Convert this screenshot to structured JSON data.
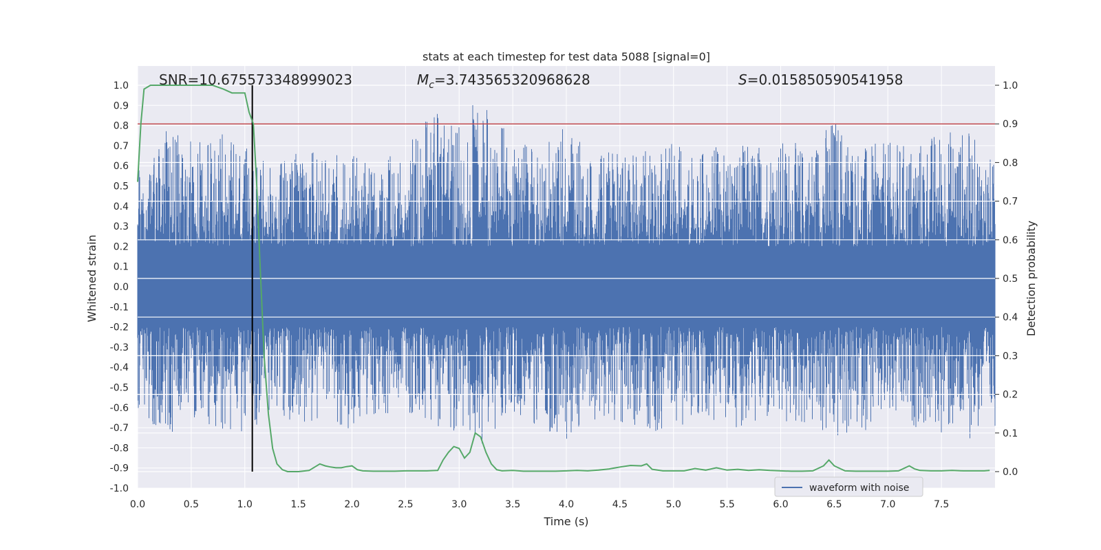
{
  "chart_data": {
    "type": "line",
    "title": "stats at each timestep for test data 5088 [signal=0]",
    "xlabel": "Time (s)",
    "ylabel_left": "Whitened strain",
    "ylabel_right": "Detection probability",
    "xlim": [
      0.0,
      8.0
    ],
    "ylim_left": [
      -1.0,
      1.0
    ],
    "ylim_right": [
      0.0,
      1.0
    ],
    "x_ticks": [
      "0.0",
      "0.5",
      "1.0",
      "1.5",
      "2.0",
      "2.5",
      "3.0",
      "3.5",
      "4.0",
      "4.5",
      "5.0",
      "5.5",
      "6.0",
      "6.5",
      "7.0",
      "7.5"
    ],
    "x_tick_values": [
      0.0,
      0.5,
      1.0,
      1.5,
      2.0,
      2.5,
      3.0,
      3.5,
      4.0,
      4.5,
      5.0,
      5.5,
      6.0,
      6.5,
      7.0,
      7.5
    ],
    "y_ticks_left": [
      "1.0",
      "0.9",
      "0.8",
      "0.7",
      "0.6",
      "0.5",
      "0.4",
      "0.3",
      "0.2",
      "0.1",
      "0.0",
      "-0.1",
      "-0.2",
      "-0.3",
      "-0.4",
      "-0.5",
      "-0.6",
      "-0.7",
      "-0.8",
      "-0.9",
      "-1.0"
    ],
    "y_tick_values_left": [
      1.0,
      0.9,
      0.8,
      0.7,
      0.6,
      0.5,
      0.4,
      0.3,
      0.2,
      0.1,
      0.0,
      -0.1,
      -0.2,
      -0.3,
      -0.4,
      -0.5,
      -0.6,
      -0.7,
      -0.8,
      -0.9,
      -1.0
    ],
    "y_ticks_right": [
      "1.0",
      "0.9",
      "0.8",
      "0.7",
      "0.6",
      "0.5",
      "0.4",
      "0.3",
      "0.2",
      "0.1",
      "0.0"
    ],
    "y_tick_values_right": [
      1.0,
      0.9,
      0.8,
      0.7,
      0.6,
      0.5,
      0.4,
      0.3,
      0.2,
      0.1,
      0.0
    ],
    "annotations": {
      "snr": "SNR=10.675573348999023",
      "mc_symbol": "M",
      "mc_sub": "c",
      "mc_value": "=3.743565320968628",
      "s_symbol": "S",
      "s_value": "=0.015850590541958"
    },
    "legend": [
      "waveform with noise"
    ],
    "threshold": 0.9,
    "marker_time": 1.07,
    "colors": {
      "waveform": "#4c72b0",
      "probability": "#55a868",
      "threshold": "#c44e52",
      "marker": "#000000",
      "axes_bg": "#eaeaf2",
      "grid": "#ffffff"
    },
    "series": [
      {
        "name": "waveform with noise",
        "axis": "left",
        "note": "dense noise; representative envelope",
        "envelope_t": [
          0.0,
          0.25,
          0.5,
          0.75,
          1.0,
          1.25,
          1.5,
          1.75,
          2.0,
          2.25,
          2.5,
          2.75,
          3.0,
          3.25,
          3.5,
          3.75,
          4.0,
          4.25,
          4.5,
          4.75,
          5.0,
          5.25,
          5.5,
          5.75,
          6.0,
          6.25,
          6.5,
          6.75,
          7.0,
          7.25,
          7.5,
          7.75,
          8.0
        ],
        "upper": [
          0.62,
          0.8,
          0.72,
          0.8,
          0.7,
          0.62,
          0.72,
          0.65,
          0.66,
          0.62,
          0.7,
          0.88,
          0.8,
          1.0,
          0.72,
          0.7,
          0.8,
          0.65,
          0.68,
          0.7,
          0.72,
          0.68,
          0.7,
          0.72,
          0.74,
          0.7,
          0.87,
          0.7,
          0.72,
          0.72,
          0.8,
          0.78,
          0.62
        ],
        "lower": [
          -0.6,
          -0.76,
          -0.66,
          -0.7,
          -0.76,
          -0.62,
          -0.7,
          -0.64,
          -0.72,
          -0.62,
          -0.66,
          -0.7,
          -0.75,
          -0.8,
          -0.66,
          -0.7,
          -0.77,
          -0.66,
          -0.68,
          -0.7,
          -0.77,
          -0.68,
          -0.7,
          -0.7,
          -0.72,
          -0.7,
          -0.8,
          -0.72,
          -0.7,
          -0.7,
          -0.74,
          -0.76,
          -0.7
        ]
      },
      {
        "name": "detection probability",
        "axis": "right",
        "x": [
          0.0,
          0.03,
          0.06,
          0.12,
          0.2,
          0.3,
          0.4,
          0.5,
          0.6,
          0.7,
          0.8,
          0.88,
          0.95,
          1.0,
          1.04,
          1.08,
          1.11,
          1.14,
          1.18,
          1.22,
          1.26,
          1.3,
          1.35,
          1.4,
          1.45,
          1.5,
          1.6,
          1.7,
          1.75,
          1.8,
          1.85,
          1.9,
          1.95,
          2.0,
          2.05,
          2.1,
          2.2,
          2.3,
          2.4,
          2.5,
          2.6,
          2.7,
          2.8,
          2.85,
          2.9,
          2.95,
          3.0,
          3.05,
          3.1,
          3.15,
          3.2,
          3.25,
          3.3,
          3.35,
          3.4,
          3.5,
          3.6,
          3.7,
          3.8,
          3.9,
          4.0,
          4.1,
          4.2,
          4.3,
          4.4,
          4.5,
          4.6,
          4.7,
          4.75,
          4.8,
          4.9,
          5.0,
          5.1,
          5.2,
          5.3,
          5.4,
          5.5,
          5.6,
          5.7,
          5.8,
          5.9,
          6.0,
          6.1,
          6.2,
          6.3,
          6.4,
          6.45,
          6.5,
          6.6,
          6.7,
          6.8,
          6.9,
          7.0,
          7.1,
          7.2,
          7.25,
          7.3,
          7.4,
          7.5,
          7.6,
          7.7,
          7.8,
          7.9,
          7.95
        ],
        "y": [
          0.75,
          0.9,
          0.99,
          1.0,
          1.0,
          1.0,
          1.0,
          1.0,
          1.0,
          1.0,
          0.99,
          0.98,
          0.98,
          0.98,
          0.93,
          0.9,
          0.75,
          0.55,
          0.3,
          0.15,
          0.06,
          0.02,
          0.005,
          0.0,
          0.0,
          0.0,
          0.003,
          0.02,
          0.015,
          0.012,
          0.01,
          0.01,
          0.013,
          0.015,
          0.005,
          0.002,
          0.001,
          0.001,
          0.001,
          0.002,
          0.002,
          0.002,
          0.003,
          0.03,
          0.05,
          0.065,
          0.06,
          0.035,
          0.05,
          0.1,
          0.09,
          0.05,
          0.02,
          0.005,
          0.002,
          0.003,
          0.001,
          0.001,
          0.001,
          0.001,
          0.002,
          0.003,
          0.002,
          0.004,
          0.007,
          0.012,
          0.016,
          0.015,
          0.02,
          0.006,
          0.002,
          0.002,
          0.002,
          0.008,
          0.004,
          0.01,
          0.004,
          0.006,
          0.003,
          0.005,
          0.003,
          0.002,
          0.001,
          0.001,
          0.002,
          0.015,
          0.03,
          0.015,
          0.002,
          0.001,
          0.001,
          0.001,
          0.001,
          0.002,
          0.015,
          0.007,
          0.003,
          0.002,
          0.002,
          0.003,
          0.002,
          0.002,
          0.002,
          0.003
        ]
      }
    ]
  }
}
